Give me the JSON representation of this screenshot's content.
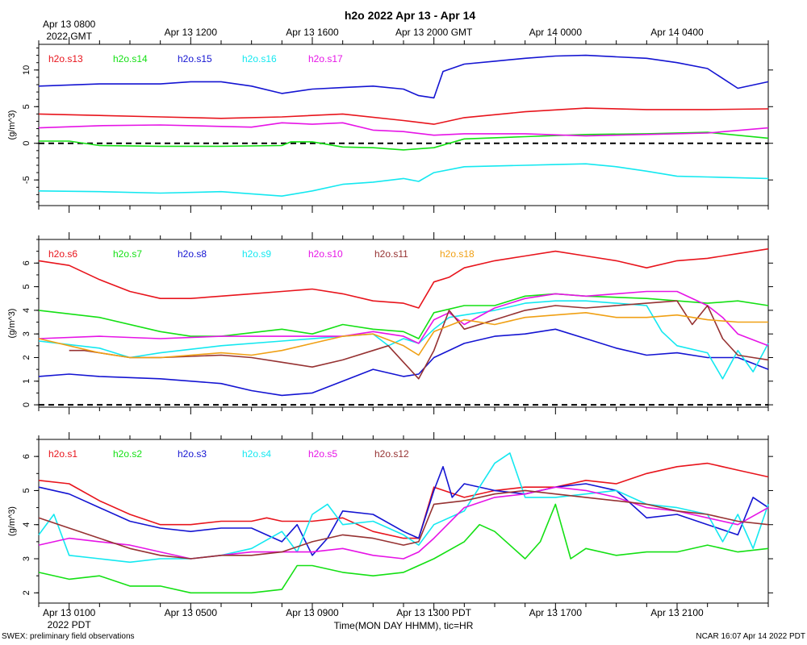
{
  "title": "h2o 2022 Apr 13 - Apr 14",
  "top_axis_labels": [
    {
      "line1": "Apr 13 0800",
      "line2": "2022 GMT",
      "hour": 1
    },
    {
      "line1": "Apr 13 1200",
      "line2": "",
      "hour": 5
    },
    {
      "line1": "Apr 13 1600",
      "line2": "",
      "hour": 9
    },
    {
      "line1": "Apr 13 2000 GMT",
      "line2": "",
      "hour": 13
    },
    {
      "line1": "Apr 14 0000",
      "line2": "",
      "hour": 17
    },
    {
      "line1": "Apr 14 0400",
      "line2": "",
      "hour": 21
    }
  ],
  "bottom_axis_labels": [
    {
      "line1": "Apr 13 0100",
      "line2": "2022 PDT",
      "hour": 1
    },
    {
      "line1": "Apr 13 0500",
      "line2": "",
      "hour": 5
    },
    {
      "line1": "Apr 13 0900",
      "line2": "",
      "hour": 9
    },
    {
      "line1": "Apr 13 1300 PDT",
      "line2": "",
      "hour": 13
    },
    {
      "line1": "Apr 13 1700",
      "line2": "",
      "hour": 17
    },
    {
      "line1": "Apr 13 2100",
      "line2": "",
      "hour": 21
    }
  ],
  "xlabel": "Time(MON DAY HHMM), tic=HR",
  "footer_left": "SWEX: preliminary field observations",
  "footer_right": "NCAR 16:07 Apr 14 2022 PDT",
  "colors": {
    "red": "#e8141c",
    "green": "#14e014",
    "blue": "#1414d2",
    "cyan": "#14e8f0",
    "magenta": "#e614e6",
    "brown": "#963232",
    "orange": "#f0a014",
    "black": "#000000"
  },
  "chart_data": [
    {
      "type": "line",
      "ylabel": "(g/m^3)",
      "xlim": [
        0,
        24
      ],
      "ylim": [
        -8.5,
        13.5
      ],
      "yticks": [
        -5,
        0,
        5,
        10
      ],
      "zero_line": true,
      "series": [
        {
          "name": "h2o.s13",
          "color": "red",
          "x": [
            0,
            2,
            4,
            6,
            8,
            10,
            12,
            13,
            14,
            16,
            18,
            20,
            22,
            24
          ],
          "y": [
            4.0,
            3.8,
            3.6,
            3.4,
            3.6,
            4.0,
            3.1,
            2.6,
            3.5,
            4.3,
            4.8,
            4.6,
            4.6,
            4.7
          ]
        },
        {
          "name": "h2o.s14",
          "color": "green",
          "x": [
            0,
            1,
            2,
            4,
            6,
            8,
            8.3,
            9,
            10,
            11,
            12,
            13,
            14,
            16,
            18,
            20,
            22,
            24
          ],
          "y": [
            0.3,
            0.3,
            -0.3,
            -0.4,
            -0.4,
            -0.3,
            0.2,
            0.2,
            -0.5,
            -0.6,
            -0.9,
            -0.6,
            0.6,
            0.9,
            1.2,
            1.3,
            1.5,
            0.7
          ]
        },
        {
          "name": "h2o.s15",
          "color": "blue",
          "x": [
            0,
            2,
            4,
            5,
            6,
            7,
            8,
            9,
            10,
            11,
            12,
            12.5,
            13,
            13.3,
            14,
            15,
            16,
            17,
            18,
            19,
            20,
            21,
            22,
            23,
            24
          ],
          "y": [
            7.8,
            8.1,
            8.1,
            8.4,
            8.4,
            7.8,
            6.8,
            7.4,
            7.6,
            7.8,
            7.4,
            6.5,
            6.2,
            9.8,
            10.8,
            11.2,
            11.6,
            11.9,
            12.0,
            11.8,
            11.6,
            11.0,
            10.2,
            7.5,
            8.4
          ]
        },
        {
          "name": "h2o.s16",
          "color": "cyan",
          "x": [
            0,
            2,
            4,
            6,
            8,
            9,
            10,
            11,
            12,
            12.5,
            13,
            14,
            16,
            17,
            18,
            19,
            20,
            21,
            22,
            24
          ],
          "y": [
            -6.5,
            -6.6,
            -6.8,
            -6.6,
            -7.2,
            -6.5,
            -5.6,
            -5.3,
            -4.8,
            -5.2,
            -4.0,
            -3.2,
            -3.0,
            -2.9,
            -2.8,
            -3.2,
            -3.8,
            -4.5,
            -4.6,
            -4.8
          ]
        },
        {
          "name": "h2o.s17",
          "color": "magenta",
          "x": [
            0,
            2,
            4,
            6,
            7,
            8,
            9,
            10,
            11,
            12,
            13,
            14,
            16,
            18,
            20,
            22,
            24
          ],
          "y": [
            2.1,
            2.4,
            2.5,
            2.3,
            2.2,
            2.8,
            2.6,
            2.8,
            1.8,
            1.6,
            1.1,
            1.3,
            1.3,
            1.0,
            1.2,
            1.4,
            2.1
          ]
        }
      ]
    },
    {
      "type": "line",
      "ylabel": "(g/m^3)",
      "xlim": [
        0,
        24
      ],
      "ylim": [
        -0.1,
        7.0
      ],
      "yticks": [
        0,
        1,
        2,
        3,
        4,
        5,
        6
      ],
      "zero_line": true,
      "series": [
        {
          "name": "h2o.s6",
          "color": "red",
          "x": [
            0,
            1,
            2,
            3,
            4,
            5,
            6,
            7,
            8,
            9,
            10,
            11,
            12,
            12.5,
            13,
            13.5,
            14,
            15,
            16,
            17,
            18,
            19,
            20,
            21,
            22,
            23,
            24
          ],
          "y": [
            6.1,
            5.9,
            5.3,
            4.8,
            4.5,
            4.5,
            4.6,
            4.7,
            4.8,
            4.9,
            4.7,
            4.4,
            4.3,
            4.1,
            5.2,
            5.4,
            5.8,
            6.1,
            6.3,
            6.5,
            6.3,
            6.1,
            5.8,
            6.1,
            6.2,
            6.4,
            6.6
          ]
        },
        {
          "name": "h2o.s7",
          "color": "green",
          "x": [
            0,
            2,
            4,
            5,
            6,
            8,
            9,
            10,
            11,
            12,
            12.5,
            13,
            14,
            15,
            16,
            17,
            18,
            20,
            22,
            23,
            24
          ],
          "y": [
            4.0,
            3.7,
            3.1,
            2.9,
            2.9,
            3.2,
            3.0,
            3.4,
            3.2,
            3.1,
            2.8,
            3.9,
            4.2,
            4.2,
            4.6,
            4.7,
            4.6,
            4.5,
            4.3,
            4.4,
            4.2
          ]
        },
        {
          "name": "h2o.s8",
          "color": "blue",
          "x": [
            0,
            1,
            2,
            4,
            6,
            7,
            8,
            9,
            10,
            11,
            12,
            12.5,
            13,
            14,
            15,
            16,
            17,
            18,
            19,
            20,
            21,
            22,
            23,
            24
          ],
          "y": [
            1.2,
            1.3,
            1.2,
            1.1,
            0.9,
            0.6,
            0.4,
            0.5,
            1.0,
            1.5,
            1.2,
            1.3,
            2.0,
            2.6,
            2.9,
            3.0,
            3.2,
            2.8,
            2.4,
            2.1,
            2.2,
            2.0,
            2.0,
            1.5
          ]
        },
        {
          "name": "h2o.s9",
          "color": "cyan",
          "x": [
            0,
            2,
            3,
            4,
            6,
            8,
            10,
            11,
            11.5,
            12,
            12.5,
            13,
            13.5,
            14,
            15,
            16,
            17,
            18,
            19,
            20,
            20.5,
            21,
            22,
            22.5,
            23,
            23.5,
            24
          ],
          "y": [
            2.7,
            2.4,
            2.0,
            2.2,
            2.5,
            2.7,
            2.9,
            3.0,
            2.5,
            2.8,
            2.6,
            3.2,
            3.7,
            3.8,
            4.0,
            4.3,
            4.4,
            4.4,
            4.3,
            4.2,
            3.1,
            2.5,
            2.2,
            1.1,
            2.3,
            1.4,
            2.6
          ]
        },
        {
          "name": "h2o.s10",
          "color": "magenta",
          "x": [
            0,
            2,
            4,
            6,
            8,
            10,
            11,
            12,
            12.5,
            13,
            13.5,
            14,
            15,
            16,
            17,
            18,
            19,
            20,
            21,
            22,
            22.5,
            23,
            24
          ],
          "y": [
            2.8,
            2.9,
            2.8,
            2.9,
            2.9,
            2.9,
            3.1,
            2.9,
            2.6,
            3.6,
            3.9,
            3.4,
            4.1,
            4.5,
            4.7,
            4.6,
            4.7,
            4.8,
            4.8,
            4.2,
            3.7,
            3.0,
            2.5
          ]
        },
        {
          "name": "h2o.s11",
          "color": "brown",
          "x": [
            1,
            1.5,
            2,
            3,
            4,
            6,
            7,
            8,
            9,
            10,
            11,
            11.5,
            12,
            12.5,
            13,
            13.5,
            14,
            15,
            16,
            17,
            18,
            19,
            20,
            21,
            21.5,
            22,
            22.5,
            23,
            23.5,
            24
          ],
          "y": [
            2.3,
            2.3,
            2.2,
            2.0,
            2.0,
            2.1,
            2.0,
            1.8,
            1.6,
            1.9,
            2.3,
            2.5,
            1.8,
            1.1,
            2.3,
            4.0,
            3.2,
            3.6,
            4.0,
            4.2,
            4.1,
            4.2,
            4.3,
            4.4,
            3.4,
            4.2,
            2.8,
            2.1,
            2.0,
            1.9
          ]
        },
        {
          "name": "h2o.s18",
          "color": "orange",
          "x": [
            0,
            1,
            2,
            3,
            4,
            6,
            7,
            8,
            9,
            10,
            11,
            12,
            12.5,
            13,
            14,
            15,
            16,
            17,
            18,
            19,
            20,
            21,
            22,
            23,
            24
          ],
          "y": [
            2.8,
            2.5,
            2.2,
            2.0,
            2.0,
            2.2,
            2.1,
            2.3,
            2.6,
            2.9,
            3.0,
            2.5,
            2.1,
            3.1,
            3.6,
            3.4,
            3.7,
            3.8,
            3.9,
            3.7,
            3.7,
            3.8,
            3.6,
            3.5,
            3.5
          ]
        }
      ]
    },
    {
      "type": "line",
      "ylabel": "(g/m^3)",
      "xlim": [
        0,
        24
      ],
      "ylim": [
        1.7,
        6.5
      ],
      "yticks": [
        2,
        3,
        4,
        5,
        6
      ],
      "zero_line": false,
      "series": [
        {
          "name": "h2o.s1",
          "color": "red",
          "x": [
            0,
            1,
            2,
            3,
            4,
            5,
            6,
            7,
            7.5,
            8,
            9,
            10,
            11,
            12,
            12.5,
            13,
            14,
            15,
            16,
            17,
            18,
            19,
            20,
            21,
            22,
            23,
            24
          ],
          "y": [
            5.3,
            5.2,
            4.7,
            4.3,
            4.0,
            4.0,
            4.1,
            4.1,
            4.2,
            4.1,
            4.1,
            4.2,
            3.8,
            3.6,
            3.6,
            5.1,
            4.8,
            5.0,
            5.1,
            5.1,
            5.3,
            5.2,
            5.5,
            5.7,
            5.8,
            5.6,
            5.4
          ]
        },
        {
          "name": "h2o.s2",
          "color": "green",
          "x": [
            0,
            1,
            2,
            3,
            4,
            5,
            6,
            7,
            8,
            8.5,
            9,
            10,
            11,
            12,
            13,
            14,
            14.5,
            15,
            16,
            16.5,
            17,
            17.5,
            18,
            19,
            20,
            21,
            22,
            23,
            24
          ],
          "y": [
            2.6,
            2.4,
            2.5,
            2.2,
            2.2,
            2.0,
            2.0,
            2.0,
            2.1,
            2.8,
            2.8,
            2.6,
            2.5,
            2.6,
            3.0,
            3.5,
            4.0,
            3.8,
            3.0,
            3.5,
            4.6,
            3.0,
            3.3,
            3.1,
            3.2,
            3.2,
            3.4,
            3.2,
            3.3
          ]
        },
        {
          "name": "h2o.s3",
          "color": "blue",
          "x": [
            0,
            1,
            2,
            3,
            4,
            5,
            6,
            7,
            8,
            8.5,
            9,
            9.5,
            10,
            11,
            12,
            12.5,
            13,
            13.3,
            13.6,
            14,
            15,
            16,
            17,
            18,
            19,
            20,
            21,
            22,
            23,
            23.5,
            24
          ],
          "y": [
            5.1,
            4.9,
            4.5,
            4.1,
            3.9,
            3.8,
            3.9,
            3.9,
            3.5,
            4.0,
            3.1,
            3.6,
            4.4,
            4.3,
            3.8,
            3.6,
            5.0,
            5.7,
            4.8,
            5.2,
            5.0,
            4.9,
            5.1,
            5.2,
            5.0,
            4.2,
            4.3,
            4.0,
            3.7,
            4.8,
            4.5
          ]
        },
        {
          "name": "h2o.s4",
          "color": "cyan",
          "x": [
            0,
            0.5,
            1,
            2,
            3,
            4,
            5,
            6,
            7,
            8,
            8.5,
            9,
            9.5,
            10,
            11,
            12,
            12.5,
            13,
            14,
            15,
            15.5,
            16,
            17,
            18,
            19,
            20,
            21,
            22,
            22.5,
            23,
            23.5,
            24
          ],
          "y": [
            3.7,
            4.3,
            3.1,
            3.0,
            2.9,
            3.0,
            3.0,
            3.1,
            3.3,
            3.8,
            3.2,
            4.3,
            4.6,
            4.0,
            4.1,
            3.7,
            3.4,
            4.0,
            4.4,
            5.8,
            6.1,
            4.8,
            4.8,
            4.9,
            5.0,
            4.6,
            4.5,
            4.3,
            3.5,
            4.3,
            3.3,
            4.6
          ]
        },
        {
          "name": "h2o.s5",
          "color": "magenta",
          "x": [
            0,
            1,
            2,
            3,
            4,
            5,
            6,
            7,
            8,
            9,
            10,
            11,
            12,
            12.5,
            13,
            14,
            15,
            16,
            17,
            18,
            19,
            20,
            21,
            22,
            23,
            24
          ],
          "y": [
            3.4,
            3.6,
            3.5,
            3.4,
            3.2,
            3.0,
            3.1,
            3.2,
            3.2,
            3.2,
            3.3,
            3.1,
            3.0,
            3.2,
            3.6,
            4.5,
            4.8,
            4.9,
            5.1,
            5.0,
            4.8,
            4.5,
            4.4,
            4.2,
            4.0,
            4.5
          ]
        },
        {
          "name": "h2o.s12",
          "color": "brown",
          "x": [
            0,
            1,
            2,
            3,
            4,
            5,
            6,
            7,
            8,
            9,
            10,
            11,
            12,
            12.5,
            13,
            14,
            15,
            16,
            17,
            18,
            19,
            20,
            21,
            22,
            23,
            24
          ],
          "y": [
            4.2,
            3.9,
            3.6,
            3.3,
            3.1,
            3.0,
            3.1,
            3.1,
            3.2,
            3.5,
            3.7,
            3.6,
            3.4,
            3.5,
            4.6,
            4.7,
            4.9,
            5.0,
            4.9,
            4.8,
            4.7,
            4.6,
            4.4,
            4.3,
            4.1,
            4.0
          ]
        }
      ]
    }
  ]
}
